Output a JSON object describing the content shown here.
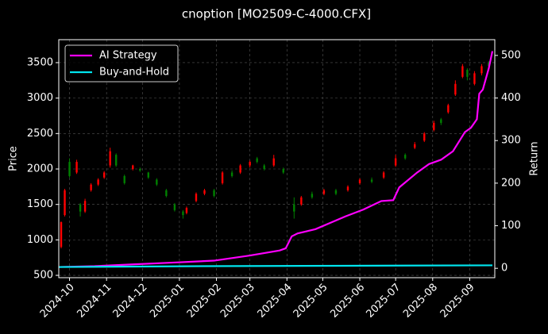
{
  "chart_data": {
    "type": "candlestick",
    "title": "cnoption [MO2509-C-4000.CFX]",
    "ylabel": "Price",
    "y2label": "Return",
    "xlim": [
      0,
      365
    ],
    "xticks": [
      {
        "value": 9,
        "label": "2024-10"
      },
      {
        "value": 40,
        "label": "2024-11"
      },
      {
        "value": 70,
        "label": "2024-12"
      },
      {
        "value": 101,
        "label": "2025-01"
      },
      {
        "value": 132,
        "label": "2025-02"
      },
      {
        "value": 160,
        "label": "2025-03"
      },
      {
        "value": 191,
        "label": "2025-04"
      },
      {
        "value": 221,
        "label": "2025-05"
      },
      {
        "value": 252,
        "label": "2025-06"
      },
      {
        "value": 282,
        "label": "2025-07"
      },
      {
        "value": 313,
        "label": "2025-08"
      },
      {
        "value": 344,
        "label": "2025-09"
      }
    ],
    "ylim": [
      467,
      3824
    ],
    "yticks": [
      500,
      1000,
      1500,
      2000,
      2500,
      3000,
      3500
    ],
    "y2lim": [
      -22,
      537
    ],
    "y2ticks": [
      0,
      100,
      200,
      300,
      400,
      500
    ],
    "grid": true,
    "legend": "upper left",
    "up_color": "#ff0000",
    "down_color": "#008000",
    "candles": {
      "x": [
        2,
        5,
        9,
        15,
        18,
        22,
        27,
        33,
        38,
        43,
        48,
        55,
        62,
        68,
        75,
        82,
        90,
        97,
        104,
        107,
        115,
        122,
        130,
        137,
        145,
        152,
        160,
        166,
        172,
        180,
        188,
        197,
        203,
        212,
        222,
        232,
        242,
        252,
        262,
        272,
        282,
        290,
        298,
        306,
        314,
        320,
        326,
        332,
        338,
        342,
        348,
        354,
        360
      ],
      "open": [
        900,
        1350,
        2100,
        1950,
        1500,
        1400,
        1700,
        1780,
        1880,
        2050,
        2200,
        1900,
        2000,
        2000,
        1950,
        1850,
        1700,
        1500,
        1400,
        1380,
        1550,
        1650,
        1700,
        1800,
        1950,
        1950,
        2050,
        2150,
        2050,
        2050,
        2000,
        1500,
        1500,
        1650,
        1650,
        1700,
        1700,
        1800,
        1850,
        1880,
        2050,
        2200,
        2300,
        2400,
        2550,
        2700,
        2800,
        3050,
        3300,
        3400,
        3200,
        3350,
        3500
      ],
      "close": [
        1250,
        1700,
        1900,
        2100,
        1400,
        1550,
        1780,
        1850,
        1950,
        2250,
        2050,
        1800,
        2050,
        1980,
        1880,
        1780,
        1620,
        1420,
        1350,
        1450,
        1650,
        1700,
        1620,
        1950,
        1900,
        2050,
        2100,
        2100,
        2000,
        2150,
        1950,
        1400,
        1600,
        1600,
        1700,
        1650,
        1750,
        1850,
        1820,
        1950,
        2150,
        2150,
        2350,
        2500,
        2650,
        2650,
        2900,
        3200,
        3450,
        3300,
        3350,
        3450,
        3450
      ],
      "high": [
        1260,
        1720,
        2150,
        2130,
        1520,
        1580,
        1800,
        1870,
        1970,
        2300,
        2220,
        1920,
        2060,
        2020,
        1960,
        1870,
        1720,
        1520,
        1420,
        1470,
        1670,
        1720,
        1720,
        1970,
        1980,
        2070,
        2120,
        2170,
        2070,
        2200,
        2020,
        1600,
        1620,
        1680,
        1720,
        1720,
        1770,
        1870,
        1880,
        1970,
        2200,
        2220,
        2380,
        2520,
        2680,
        2720,
        2920,
        3250,
        3480,
        3420,
        3380,
        3480,
        3520
      ],
      "low": [
        880,
        1330,
        1880,
        1930,
        1330,
        1380,
        1680,
        1760,
        1860,
        2020,
        2030,
        1780,
        1980,
        1960,
        1860,
        1760,
        1600,
        1400,
        1300,
        1360,
        1530,
        1630,
        1600,
        1780,
        1880,
        1930,
        2020,
        2080,
        1980,
        2030,
        1930,
        1300,
        1480,
        1580,
        1630,
        1630,
        1680,
        1780,
        1800,
        1860,
        2030,
        2130,
        2280,
        2380,
        2530,
        2620,
        2780,
        3030,
        3280,
        3250,
        3180,
        3320,
        3420
      ]
    },
    "series": [
      {
        "name": "AI Strategy",
        "color": "#ff00ff",
        "axis": "y2",
        "x": [
          0,
          30,
          60,
          100,
          130,
          160,
          185,
          190,
          195,
          200,
          215,
          240,
          255,
          270,
          280,
          285,
          300,
          310,
          320,
          330,
          340,
          345,
          350,
          352,
          355,
          360,
          363
        ],
        "values": [
          3,
          5,
          9,
          14,
          18,
          30,
          42,
          47,
          75,
          82,
          92,
          122,
          138,
          158,
          160,
          190,
          225,
          245,
          255,
          275,
          320,
          330,
          350,
          410,
          420,
          470,
          510
        ]
      },
      {
        "name": "Buy-and-Hold",
        "color": "#00e5ee",
        "axis": "y2",
        "x": [
          0,
          120,
          240,
          363
        ],
        "values": [
          3,
          5,
          6,
          7
        ]
      }
    ]
  }
}
